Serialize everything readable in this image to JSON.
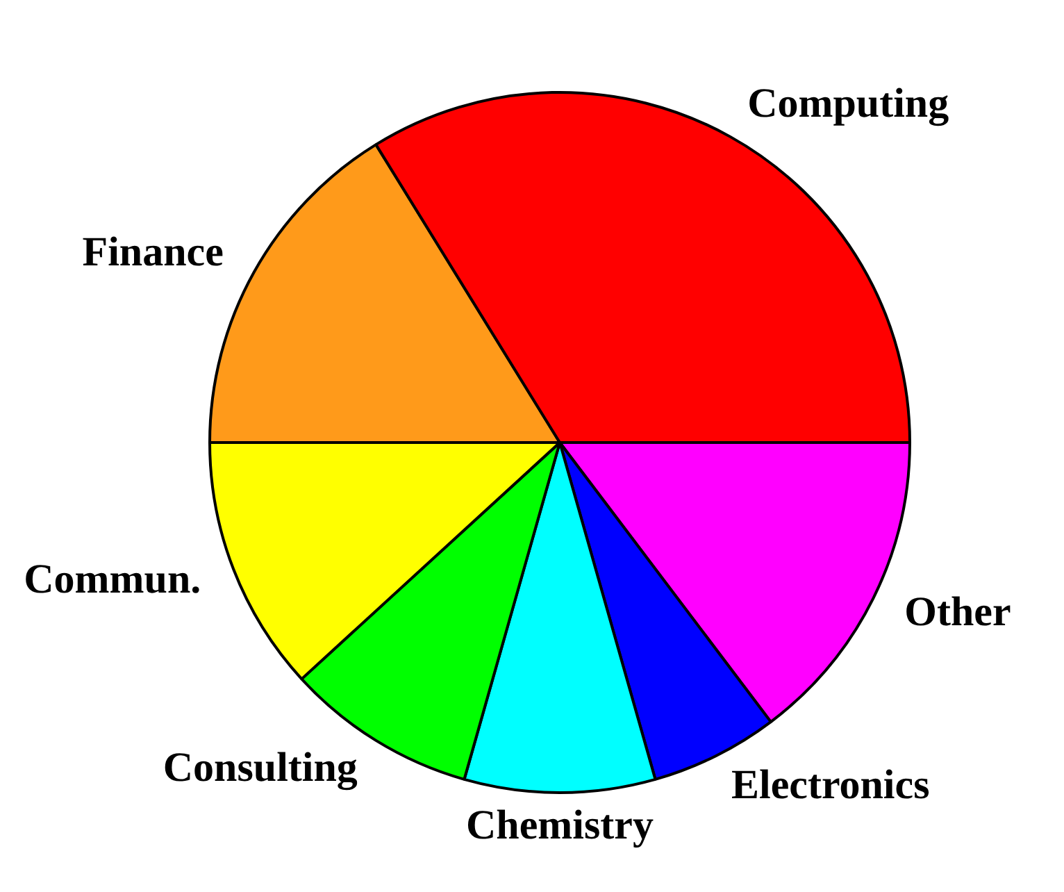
{
  "chart_data": {
    "type": "pie",
    "categories": [
      "Computing",
      "Finance",
      "Commun.",
      "Consulting",
      "Chemistry",
      "Electronics",
      "Other"
    ],
    "values": [
      33.8,
      16.2,
      11.8,
      8.8,
      8.8,
      5.9,
      14.7
    ],
    "colors": [
      "#ff0000",
      "#ff9a1a",
      "#ffff00",
      "#00ff00",
      "#00ffff",
      "#0000ff",
      "#ff00ff"
    ],
    "legend": false
  }
}
